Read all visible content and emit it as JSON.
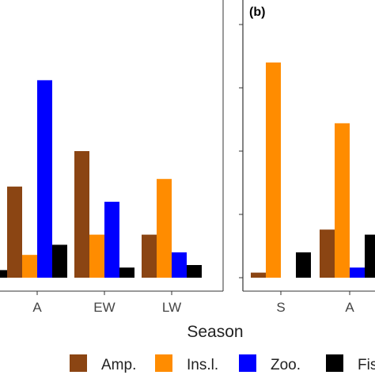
{
  "chart_data": {
    "type": "bar",
    "xlabel": "Season",
    "legend": {
      "placement": "bottom",
      "entries": [
        {
          "label": "Amp.",
          "color": "#8B4513"
        },
        {
          "label": "Ins.l.",
          "color": "#FF8C00"
        },
        {
          "label": "Zoo.",
          "color": "#0000FF"
        },
        {
          "label": "Fis.",
          "color": "#000000"
        }
      ]
    },
    "panels": [
      {
        "tag": "",
        "categories": [
          "",
          "A",
          "EW",
          "LW"
        ],
        "series": [
          {
            "name": "Amp.",
            "values": [
              null,
              0.36,
              0.5,
              0.17
            ]
          },
          {
            "name": "Ins.l.",
            "values": [
              null,
              0.09,
              0.17,
              0.39
            ]
          },
          {
            "name": "Zoo.",
            "values": [
              null,
              0.78,
              0.3,
              0.1
            ]
          },
          {
            "name": "Fis.",
            "values": [
              0.03,
              0.13,
              0.04,
              0.05
            ]
          }
        ],
        "ylim": [
          0,
          1
        ]
      },
      {
        "tag": "(b)",
        "categories": [
          "S",
          "A"
        ],
        "series": [
          {
            "name": "Amp.",
            "values": [
              0.02,
              0.19
            ]
          },
          {
            "name": "Ins.l.",
            "values": [
              0.85,
              0.61
            ]
          },
          {
            "name": "Zoo.",
            "values": [
              0.0,
              0.04
            ]
          },
          {
            "name": "Fis.",
            "values": [
              0.1,
              0.17
            ]
          }
        ],
        "ylim": [
          0,
          1
        ]
      }
    ]
  }
}
